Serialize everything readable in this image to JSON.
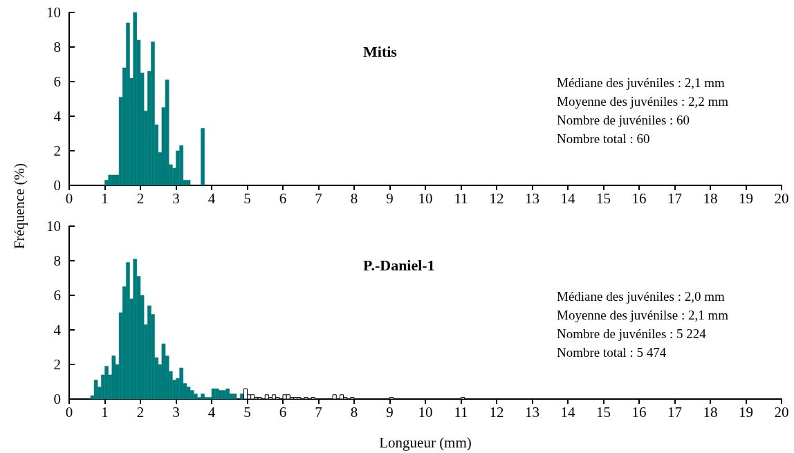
{
  "chart_data": [
    {
      "type": "histogram",
      "title": "Mitis",
      "ylabel": "Fréquence (%)",
      "annotations": [
        "Médiane des juvéniles : 2,1 mm",
        "Moyenne des juvéniles : 2,2 mm",
        "Nombre de juvéniles : 60",
        "Nombre total : 60"
      ],
      "bins": [
        1.0,
        1.1,
        1.2,
        1.3,
        1.4,
        1.5,
        1.6,
        1.7,
        1.8,
        1.9,
        2.0,
        2.1,
        2.2,
        2.3,
        2.4,
        2.5,
        2.6,
        2.7,
        2.8,
        2.9,
        3.0,
        3.1,
        3.2,
        3.3,
        3.4,
        3.5,
        3.6,
        3.7,
        3.8
      ],
      "series": [
        {
          "color": "#007b7b",
          "values": [
            0.3,
            0.6,
            0.6,
            0.6,
            5.1,
            6.8,
            9.4,
            6.2,
            10.0,
            8.4,
            6.5,
            4.3,
            6.6,
            8.3,
            3.5,
            1.9,
            4.5,
            6.1,
            1.2,
            1.0,
            2.0,
            2.3,
            0.3,
            0.3,
            0,
            0,
            0,
            3.3
          ]
        }
      ],
      "xlim": [
        0,
        20
      ],
      "xticks": [
        0,
        1,
        2,
        3,
        4,
        5,
        6,
        7,
        8,
        9,
        10,
        11,
        12,
        13,
        14,
        15,
        16,
        17,
        18,
        19,
        20
      ],
      "ylim": [
        0,
        10
      ],
      "yticks": [
        0,
        2,
        4,
        6,
        8,
        10
      ],
      "grid": false
    },
    {
      "type": "histogram",
      "title": "P.-Daniel-1",
      "xlabel": "Longueur (mm)",
      "annotations": [
        "Médiane des juvéniles : 2,0 mm",
        "Moyenne des juvénilse : 2,1 mm",
        "Nombre de juvéniles : 5 224",
        "Nombre total : 5 474"
      ],
      "bins": [
        0.6,
        0.7,
        0.8,
        0.9,
        1.0,
        1.1,
        1.2,
        1.3,
        1.4,
        1.5,
        1.6,
        1.7,
        1.8,
        1.9,
        2.0,
        2.1,
        2.2,
        2.3,
        2.4,
        2.5,
        2.6,
        2.7,
        2.8,
        2.9,
        3.0,
        3.1,
        3.2,
        3.3,
        3.4,
        3.5,
        3.6,
        3.7,
        3.8,
        3.9,
        4.0,
        4.1,
        4.2,
        4.3,
        4.4,
        4.5,
        4.6,
        4.7,
        4.8,
        4.9,
        5.0,
        5.1,
        5.2,
        5.3,
        5.4,
        5.5,
        5.6,
        5.7,
        5.8,
        5.9,
        6.0,
        6.1,
        6.2,
        6.3,
        6.4,
        6.5,
        6.6,
        6.7,
        6.8,
        6.9,
        7.0,
        7.1,
        7.2,
        7.3,
        7.4,
        7.5,
        7.6,
        7.7,
        7.8,
        7.9,
        8.0,
        8.1,
        8.2,
        8.3,
        8.4,
        8.5,
        8.6,
        8.7,
        8.8,
        8.9,
        9.0,
        9.1,
        9.2,
        9.3,
        9.4,
        9.5,
        9.6,
        9.7,
        9.8,
        9.9,
        10.0,
        10.1,
        10.2,
        10.3,
        10.4,
        10.5,
        10.6,
        10.7,
        10.8,
        10.9,
        11.0,
        11.1
      ],
      "series": [
        {
          "color": "#007b7b",
          "values": [
            0.2,
            1.1,
            0.7,
            1.4,
            1.9,
            1.4,
            2.5,
            2.0,
            5.0,
            6.5,
            7.9,
            5.8,
            8.1,
            7.1,
            6.0,
            4.3,
            5.4,
            4.9,
            2.4,
            2.0,
            3.2,
            2.5,
            1.6,
            1.1,
            1.2,
            1.8,
            0.9,
            0.7,
            0.5,
            0.3,
            0.1,
            0.3,
            0.1,
            0.1,
            0.6,
            0.6,
            0.5,
            0.5,
            0.6,
            0.3,
            0.3,
            0,
            0.3,
            0,
            0,
            0,
            0,
            0,
            0,
            0,
            0,
            0,
            0,
            0,
            0,
            0,
            0,
            0,
            0,
            0,
            0,
            0,
            0,
            0,
            0,
            0,
            0,
            0,
            0,
            0,
            0,
            0,
            0,
            0,
            0,
            0,
            0,
            0,
            0,
            0,
            0,
            0,
            0,
            0,
            0,
            0,
            0,
            0,
            0,
            0,
            0,
            0,
            0,
            0,
            0,
            0,
            0,
            0,
            0,
            0,
            0,
            0,
            0,
            0,
            0
          ]
        },
        {
          "color": "#ffffff",
          "values": [
            0,
            0,
            0,
            0,
            0,
            0,
            0,
            0,
            0,
            0,
            0,
            0,
            0,
            0,
            0,
            0,
            0,
            0,
            0,
            0,
            0,
            0,
            0,
            0,
            0,
            0,
            0,
            0,
            0,
            0,
            0,
            0,
            0,
            0,
            0,
            0,
            0,
            0,
            0,
            0,
            0,
            0,
            0,
            0.6,
            0.25,
            0.25,
            0.1,
            0.1,
            0,
            0.25,
            0.1,
            0.25,
            0.1,
            0,
            0.25,
            0.25,
            0.1,
            0.1,
            0.1,
            0,
            0.1,
            0,
            0.1,
            0,
            0,
            0,
            0,
            0,
            0.25,
            0,
            0.25,
            0.1,
            0,
            0.1,
            0,
            0,
            0,
            0,
            0,
            0,
            0,
            0,
            0,
            0,
            0.1,
            0,
            0,
            0,
            0,
            0,
            0,
            0,
            0,
            0,
            0,
            0,
            0,
            0,
            0,
            0,
            0,
            0,
            0,
            0,
            0.1
          ]
        }
      ],
      "xlim": [
        0,
        20
      ],
      "xticks": [
        0,
        1,
        2,
        3,
        4,
        5,
        6,
        7,
        8,
        9,
        10,
        11,
        12,
        13,
        14,
        15,
        16,
        17,
        18,
        19,
        20
      ],
      "ylim": [
        0,
        10
      ],
      "yticks": [
        0,
        2,
        4,
        6,
        8,
        10
      ],
      "grid": false
    }
  ]
}
